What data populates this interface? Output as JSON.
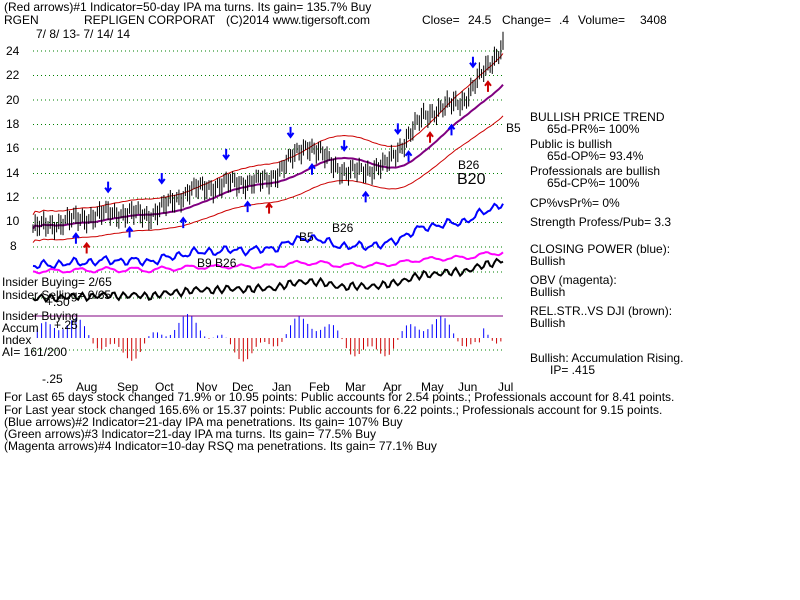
{
  "header": {
    "indicator_line": "(Red arrows)#1 Indicator=50-day IPA ma turns. Its gain= 135.7% Buy",
    "ticker": "RGEN",
    "company": "REPLIGEN CORPORAT",
    "copyright": "(C)2014 www.tigersoft.com",
    "close_label": "Close=",
    "close_value": "24.5",
    "change_label": "Change=",
    "change_value": ".4",
    "volume_label": "Volume=",
    "volume_value": "3408",
    "date_range": "7/ 8/ 13- 7/ 14/ 14"
  },
  "price_axis": [
    "24",
    "22",
    "20",
    "18",
    "16",
    "14",
    "12",
    "10",
    "8"
  ],
  "month_labels": [
    "Aug",
    "Sep",
    "Oct",
    "Nov",
    "Dec",
    "Jan",
    "Feb",
    "Mar",
    "Apr",
    "May",
    "Jun",
    "Jul"
  ],
  "signal_labels": {
    "b5_right": "B5",
    "b26_upper": "B26",
    "b20": "B20",
    "b26_lower": "B26",
    "b5_lower": "B5",
    "b9_b26": "B9 B26"
  },
  "left_panel": {
    "insider_buying": "Insider Buying= 2/65",
    "insider_selling": "Insider Selling= 0/65",
    "plus50": "+.50",
    "insider_buying2": "Insider Buying",
    "accum": "Accum",
    "plus25": "+.25",
    "index": "Index",
    "ai": "AI= 161/200",
    "minus25": "-.25"
  },
  "right_panel": {
    "bullish_trend": "BULLISH PRICE TREND",
    "pr": "65d-PR%= 100%",
    "public_bullish": "Public is bullish",
    "op": "65d-OP%= 93.4%",
    "pros_bullish": "Professionals are bullish",
    "cp": "65d-CP%= 100%",
    "cpvspr": "CP%vsPr%= 0%",
    "strength": "Strength Profess/Pub= 3.3",
    "closing_power": "CLOSING POWER (blue):",
    "closing_power_val": "Bullish",
    "obv": "OBV (magenta):",
    "obv_val": "Bullish",
    "relstr": "REL.STR..VS DJI (brown):",
    "relstr_val": "Bullish",
    "accum_rising": "Bullish: Accumulation Rising.",
    "ip": "IP= .415"
  },
  "footer": [
    "For Last 65 days stock changed  71.9% or  10.95 points:  Public accounts for  2.54 points.;  Professionals account for  8.41 points.",
    "For Last year stock changed  165.6% or  15.37 points:  Public accounts for  6.22 points.;  Professionals account for  9.15 points.",
    "(Blue arrows)#2 Indicator=21-day IPA ma penetrations. Its gain= 107% Buy",
    "(Green arrows)#3 Indicator=21-day IPA ma turns. Its gain= 77.5% Buy",
    "(Magenta arrows)#4 Indicator=10-day RSQ ma penetrations. Its gain= 77.1% Buy"
  ],
  "colors": {
    "price": "#000000",
    "band": "#cc0000",
    "ma": "#800080",
    "closing_power": "#0000ff",
    "obv": "#ff00ff",
    "relstr": "#000000",
    "accum": "#0000ff",
    "accum_neg": "#cc0000",
    "grid": "#008000"
  },
  "chart_data": {
    "type": "line",
    "title": "RGEN REPLIGEN CORPORAT",
    "xlabel": "",
    "ylabel": "",
    "x": [
      "Jul",
      "Aug",
      "Sep",
      "Oct",
      "Nov",
      "Dec",
      "Jan",
      "Feb",
      "Mar",
      "Apr",
      "May",
      "Jun",
      "Jul"
    ],
    "ylim": [
      8,
      25
    ],
    "series": [
      {
        "values": [
          9.5,
          10.2,
          10.8,
          10.6,
          12.6,
          13.2,
          13.4,
          16.4,
          14.0,
          14.6,
          18.8,
          20.0,
          24.5
        ]
      }
    ],
    "price_ticks": [
      24,
      22,
      20,
      18,
      16,
      14,
      12,
      10,
      8
    ],
    "grid": true
  }
}
